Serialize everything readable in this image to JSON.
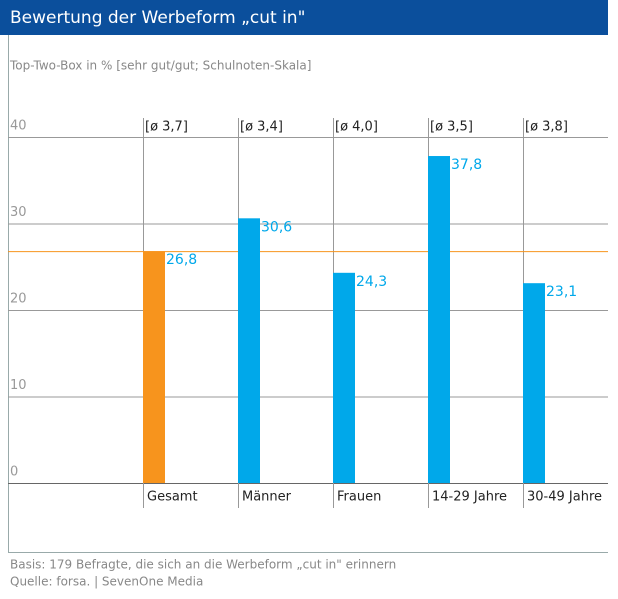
{
  "chart_data": {
    "type": "bar",
    "title": "Bewertung der Werbeform „cut in\"",
    "subtitle": "Top-Two-Box in % [sehr gut/gut; Schulnoten-Skala]",
    "categories": [
      "Gesamt",
      "Männer",
      "Frauen",
      "14-29 Jahre",
      "30-49 Jahre"
    ],
    "values": [
      26.8,
      30.6,
      24.3,
      37.8,
      23.1
    ],
    "value_labels": [
      "26,8",
      "30,6",
      "24,3",
      "37,8",
      "23,1"
    ],
    "annotations": [
      "[ø 3,7]",
      "[ø 3,4]",
      "[ø 4,0]",
      "[ø 3,5]",
      "[ø 3,8]"
    ],
    "colors": [
      "#f7941d",
      "#00a8ea",
      "#00a8ea",
      "#00a8ea",
      "#00a8ea"
    ],
    "reference_color": "#f7941d",
    "ylim": [
      0,
      40
    ],
    "yticks": [
      0,
      10,
      20,
      30,
      40
    ],
    "grid": true,
    "footnotes": [
      "Basis: 179 Befragte, die sich an die Werbeform „cut in\" erinnern",
      "Quelle: forsa. | SevenOne Media"
    ]
  }
}
